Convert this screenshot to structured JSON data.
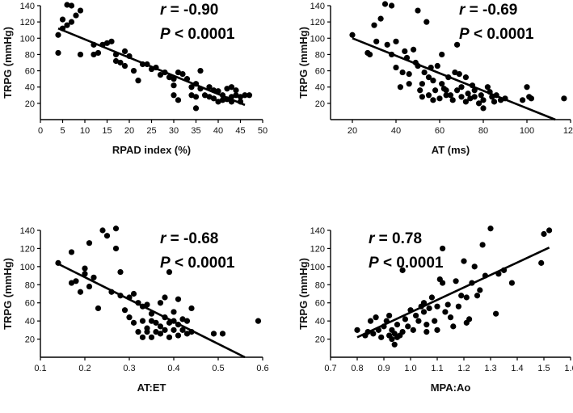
{
  "chart_data": [
    {
      "type": "scatter",
      "xlabel": "RPAD index (%)",
      "ylabel": "TRPG (mmHg)",
      "xlim": [
        0,
        50
      ],
      "ylim": [
        0,
        140
      ],
      "xticks": [
        0,
        5,
        10,
        15,
        20,
        25,
        30,
        35,
        40,
        45,
        50
      ],
      "yticks": [
        20,
        40,
        60,
        80,
        100,
        120,
        140
      ],
      "xtick_labels": [
        "0",
        "5",
        "10",
        "15",
        "20",
        "25",
        "30",
        "35",
        "40",
        "45",
        "50"
      ],
      "ytick_labels": [
        "20",
        "40",
        "60",
        "80",
        "100",
        "120",
        "140"
      ],
      "stat_r_symbol": "r",
      "stat_r_value": "= -0.90",
      "stat_p_symbol": "P",
      "stat_p_value": "< 0.0001",
      "fit": [
        [
          4,
          112
        ],
        [
          46,
          18
        ]
      ],
      "points": [
        [
          4,
          82
        ],
        [
          4,
          104
        ],
        [
          5,
          112
        ],
        [
          5,
          123
        ],
        [
          6,
          141
        ],
        [
          6,
          116
        ],
        [
          7,
          140
        ],
        [
          7,
          120
        ],
        [
          8,
          128
        ],
        [
          9,
          134
        ],
        [
          9,
          80
        ],
        [
          12,
          92
        ],
        [
          12,
          80
        ],
        [
          13,
          82
        ],
        [
          14,
          92
        ],
        [
          15,
          94
        ],
        [
          16,
          96
        ],
        [
          17,
          80
        ],
        [
          17,
          72
        ],
        [
          18,
          70
        ],
        [
          19,
          84
        ],
        [
          19,
          66
        ],
        [
          20,
          78
        ],
        [
          21,
          60
        ],
        [
          22,
          48
        ],
        [
          23,
          68
        ],
        [
          24,
          68
        ],
        [
          25,
          62
        ],
        [
          26,
          64
        ],
        [
          27,
          55
        ],
        [
          28,
          58
        ],
        [
          29,
          52
        ],
        [
          30,
          50
        ],
        [
          30,
          42
        ],
        [
          30,
          30
        ],
        [
          31,
          24
        ],
        [
          31,
          58
        ],
        [
          32,
          56
        ],
        [
          33,
          50
        ],
        [
          34,
          40
        ],
        [
          34,
          30
        ],
        [
          35,
          28
        ],
        [
          35,
          14
        ],
        [
          35,
          44
        ],
        [
          36,
          60
        ],
        [
          36,
          38
        ],
        [
          37,
          30
        ],
        [
          38,
          28
        ],
        [
          38,
          40
        ],
        [
          39,
          36
        ],
        [
          39,
          26
        ],
        [
          40,
          35
        ],
        [
          40,
          22
        ],
        [
          41,
          30
        ],
        [
          41,
          24
        ],
        [
          42,
          38
        ],
        [
          42,
          25
        ],
        [
          43,
          40
        ],
        [
          43,
          28
        ],
        [
          43,
          22
        ],
        [
          44,
          36
        ],
        [
          44,
          30
        ],
        [
          45,
          28
        ],
        [
          45,
          22
        ],
        [
          46,
          30
        ],
        [
          47,
          30
        ]
      ]
    },
    {
      "type": "scatter",
      "xlabel": "AT (ms)",
      "ylabel": "TRPG (mmHg)",
      "xlim": [
        10,
        120
      ],
      "ylim": [
        0,
        140
      ],
      "xticks": [
        20,
        40,
        60,
        80,
        100,
        120
      ],
      "yticks": [
        20,
        40,
        60,
        80,
        100,
        120,
        140
      ],
      "xtick_labels": [
        "20",
        "40",
        "60",
        "80",
        "100",
        "120"
      ],
      "ytick_labels": [
        "20",
        "40",
        "60",
        "80",
        "100",
        "120",
        "140"
      ],
      "stat_r_symbol": "r",
      "stat_r_value": "= -0.69",
      "stat_p_symbol": "P",
      "stat_p_value": "< 0.0001",
      "fit": [
        [
          20,
          100
        ],
        [
          113,
          0
        ]
      ],
      "points": [
        [
          20,
          104
        ],
        [
          27,
          82
        ],
        [
          28,
          80
        ],
        [
          30,
          116
        ],
        [
          31,
          96
        ],
        [
          33,
          124
        ],
        [
          35,
          142
        ],
        [
          36,
          92
        ],
        [
          38,
          140
        ],
        [
          38,
          80
        ],
        [
          40,
          96
        ],
        [
          40,
          64
        ],
        [
          42,
          40
        ],
        [
          43,
          58
        ],
        [
          44,
          84
        ],
        [
          45,
          76
        ],
        [
          46,
          44
        ],
        [
          46,
          56
        ],
        [
          48,
          86
        ],
        [
          49,
          70
        ],
        [
          50,
          134
        ],
        [
          50,
          66
        ],
        [
          51,
          36
        ],
        [
          52,
          44
        ],
        [
          52,
          28
        ],
        [
          53,
          58
        ],
        [
          54,
          120
        ],
        [
          55,
          52
        ],
        [
          55,
          30
        ],
        [
          56,
          64
        ],
        [
          57,
          48
        ],
        [
          57,
          24
        ],
        [
          58,
          36
        ],
        [
          59,
          66
        ],
        [
          60,
          26
        ],
        [
          61,
          80
        ],
        [
          61,
          44
        ],
        [
          62,
          38
        ],
        [
          63,
          36
        ],
        [
          63,
          30
        ],
        [
          64,
          52
        ],
        [
          65,
          30
        ],
        [
          66,
          24
        ],
        [
          67,
          58
        ],
        [
          68,
          92
        ],
        [
          68,
          36
        ],
        [
          69,
          56
        ],
        [
          70,
          28
        ],
        [
          70,
          40
        ],
        [
          72,
          52
        ],
        [
          72,
          22
        ],
        [
          73,
          32
        ],
        [
          74,
          26
        ],
        [
          75,
          42
        ],
        [
          76,
          36
        ],
        [
          76,
          28
        ],
        [
          78,
          20
        ],
        [
          79,
          30
        ],
        [
          80,
          14
        ],
        [
          80,
          24
        ],
        [
          82,
          40
        ],
        [
          83,
          34
        ],
        [
          84,
          28
        ],
        [
          85,
          22
        ],
        [
          86,
          30
        ],
        [
          88,
          24
        ],
        [
          90,
          26
        ],
        [
          98,
          24
        ],
        [
          100,
          40
        ],
        [
          101,
          28
        ],
        [
          102,
          26
        ],
        [
          117,
          26
        ]
      ]
    },
    {
      "type": "scatter",
      "xlabel": "AT:ET",
      "ylabel": "TRPG (mmHg)",
      "xlim": [
        0.1,
        0.6
      ],
      "ylim": [
        0,
        140
      ],
      "xticks": [
        0.1,
        0.2,
        0.3,
        0.4,
        0.5,
        0.6
      ],
      "yticks": [
        20,
        40,
        60,
        80,
        100,
        120,
        140
      ],
      "xtick_labels": [
        "0.1",
        "0.2",
        "0.3",
        "0.4",
        "0.5",
        "0.6"
      ],
      "ytick_labels": [
        "20",
        "40",
        "60",
        "80",
        "100",
        "120",
        "140"
      ],
      "stat_r_symbol": "r",
      "stat_r_value": "= -0.68",
      "stat_p_symbol": "P",
      "stat_p_value": "< 0.0001",
      "fit": [
        [
          0.14,
          103
        ],
        [
          0.56,
          0
        ]
      ],
      "points": [
        [
          0.14,
          104
        ],
        [
          0.17,
          116
        ],
        [
          0.17,
          82
        ],
        [
          0.18,
          84
        ],
        [
          0.19,
          72
        ],
        [
          0.2,
          98
        ],
        [
          0.2,
          92
        ],
        [
          0.21,
          126
        ],
        [
          0.21,
          78
        ],
        [
          0.22,
          88
        ],
        [
          0.23,
          54
        ],
        [
          0.24,
          140
        ],
        [
          0.25,
          134
        ],
        [
          0.26,
          72
        ],
        [
          0.27,
          142
        ],
        [
          0.27,
          120
        ],
        [
          0.28,
          94
        ],
        [
          0.28,
          68
        ],
        [
          0.29,
          52
        ],
        [
          0.3,
          66
        ],
        [
          0.3,
          44
        ],
        [
          0.31,
          70
        ],
        [
          0.31,
          38
        ],
        [
          0.32,
          60
        ],
        [
          0.32,
          28
        ],
        [
          0.33,
          56
        ],
        [
          0.33,
          22
        ],
        [
          0.33,
          40
        ],
        [
          0.34,
          58
        ],
        [
          0.34,
          32
        ],
        [
          0.34,
          28
        ],
        [
          0.35,
          48
        ],
        [
          0.35,
          22
        ],
        [
          0.35,
          40
        ],
        [
          0.36,
          38
        ],
        [
          0.36,
          28
        ],
        [
          0.37,
          60
        ],
        [
          0.37,
          34
        ],
        [
          0.37,
          26
        ],
        [
          0.38,
          66
        ],
        [
          0.38,
          44
        ],
        [
          0.38,
          30
        ],
        [
          0.39,
          94
        ],
        [
          0.39,
          38
        ],
        [
          0.39,
          22
        ],
        [
          0.4,
          50
        ],
        [
          0.4,
          40
        ],
        [
          0.4,
          30
        ],
        [
          0.41,
          64
        ],
        [
          0.41,
          36
        ],
        [
          0.41,
          24
        ],
        [
          0.42,
          42
        ],
        [
          0.42,
          30
        ],
        [
          0.43,
          40
        ],
        [
          0.43,
          26
        ],
        [
          0.44,
          54
        ],
        [
          0.44,
          28
        ],
        [
          0.49,
          26
        ],
        [
          0.51,
          26
        ],
        [
          0.59,
          40
        ]
      ]
    },
    {
      "type": "scatter",
      "xlabel": "MPA:Ao",
      "ylabel": "TRPG (mmHg)",
      "xlim": [
        0.7,
        1.6
      ],
      "ylim": [
        0,
        140
      ],
      "xticks": [
        0.7,
        0.8,
        0.9,
        1.0,
        1.1,
        1.2,
        1.3,
        1.4,
        1.5,
        1.6
      ],
      "yticks": [
        20,
        40,
        60,
        80,
        100,
        120,
        140
      ],
      "xtick_labels": [
        "0.7",
        "0.8",
        "0.9",
        "1.0",
        "1.1",
        "1.2",
        "1.3",
        "1.4",
        "1.5",
        "1.6"
      ],
      "ytick_labels": [
        "20",
        "40",
        "60",
        "80",
        "100",
        "120",
        "140"
      ],
      "stat_r_symbol": "r",
      "stat_r_value": "= 0.78",
      "stat_p_symbol": "P",
      "stat_p_value": "< 0.0001",
      "fit": [
        [
          0.8,
          22
        ],
        [
          1.52,
          121
        ]
      ],
      "points": [
        [
          0.8,
          30
        ],
        [
          0.83,
          24
        ],
        [
          0.84,
          28
        ],
        [
          0.85,
          40
        ],
        [
          0.86,
          26
        ],
        [
          0.87,
          44
        ],
        [
          0.88,
          30
        ],
        [
          0.89,
          22
        ],
        [
          0.9,
          34
        ],
        [
          0.91,
          40
        ],
        [
          0.92,
          24
        ],
        [
          0.92,
          46
        ],
        [
          0.93,
          20
        ],
        [
          0.93,
          30
        ],
        [
          0.94,
          14
        ],
        [
          0.94,
          26
        ],
        [
          0.95,
          22
        ],
        [
          0.95,
          36
        ],
        [
          0.96,
          24
        ],
        [
          0.97,
          96
        ],
        [
          0.97,
          28
        ],
        [
          0.98,
          42
        ],
        [
          0.99,
          34
        ],
        [
          1.0,
          52
        ],
        [
          1.01,
          30
        ],
        [
          1.02,
          46
        ],
        [
          1.03,
          40
        ],
        [
          1.04,
          56
        ],
        [
          1.05,
          60
        ],
        [
          1.05,
          50
        ],
        [
          1.06,
          28
        ],
        [
          1.06,
          36
        ],
        [
          1.07,
          54
        ],
        [
          1.08,
          66
        ],
        [
          1.09,
          40
        ],
        [
          1.1,
          56
        ],
        [
          1.1,
          30
        ],
        [
          1.11,
          86
        ],
        [
          1.12,
          82
        ],
        [
          1.12,
          120
        ],
        [
          1.13,
          50
        ],
        [
          1.14,
          58
        ],
        [
          1.15,
          44
        ],
        [
          1.16,
          34
        ],
        [
          1.17,
          84
        ],
        [
          1.18,
          56
        ],
        [
          1.19,
          68
        ],
        [
          1.2,
          106
        ],
        [
          1.21,
          38
        ],
        [
          1.21,
          66
        ],
        [
          1.22,
          42
        ],
        [
          1.23,
          82
        ],
        [
          1.24,
          100
        ],
        [
          1.25,
          68
        ],
        [
          1.26,
          74
        ],
        [
          1.27,
          124
        ],
        [
          1.28,
          90
        ],
        [
          1.3,
          142
        ],
        [
          1.32,
          48
        ],
        [
          1.33,
          92
        ],
        [
          1.35,
          96
        ],
        [
          1.38,
          82
        ],
        [
          1.49,
          104
        ],
        [
          1.5,
          136
        ],
        [
          1.52,
          140
        ]
      ]
    }
  ]
}
